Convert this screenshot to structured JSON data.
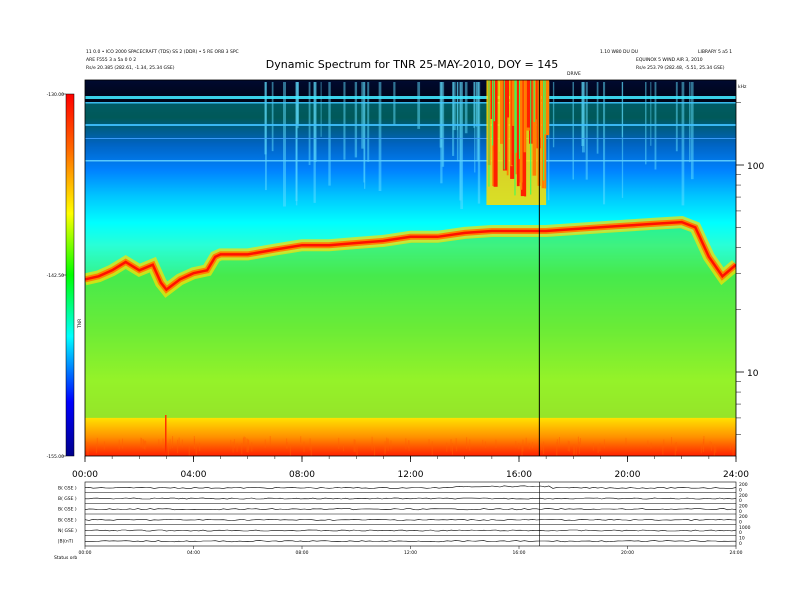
{
  "header": {
    "left_line1": "11 0.0 • ICO 2000 SPACECRAFT (TDS) SS 2 (DDR) • 5 RE ORB 3 SPC",
    "left_line2": "ARE F555 3 a 5a 0 0 2",
    "left_line3": "Rs/e 20.385 (282.61, -1.34, 25.34 GSE)",
    "right_line1": "1.10 W80 DU DU",
    "right_line1b": "LIBRARY 5 a5 1",
    "right_line2": "EQUINOX 5 WIND AIR 3, 2010",
    "right_line3": "Rs/e 253.79 (282.48, -5.51, 25.34 GSE)",
    "center_tag": "DRIVE"
  },
  "chart_data": {
    "type": "heatmap",
    "title": "Dynamic Spectrum for TNR 25-MAY-2010, DOY = 145",
    "x_ticks": [
      "00:00",
      "04:00",
      "08:00",
      "12:00",
      "16:00",
      "20:00",
      "24:00"
    ],
    "x_range_hours": [
      0,
      24
    ],
    "y_scale": "log",
    "y_unit": "kHz",
    "y_ticks": [
      10,
      100
    ],
    "colorbar": {
      "ticks": [
        "-130.00",
        "-142.50",
        "-155.00"
      ],
      "label": "TNR",
      "range": [
        -155,
        -130
      ]
    },
    "marker_line_hours": 16.75,
    "plasma_line_khz": [
      [
        0,
        28
      ],
      [
        0.5,
        29
      ],
      [
        1,
        31
      ],
      [
        1.5,
        34
      ],
      [
        2,
        31
      ],
      [
        2.5,
        33
      ],
      [
        2.8,
        27
      ],
      [
        3,
        25
      ],
      [
        3.5,
        28
      ],
      [
        4,
        30
      ],
      [
        4.5,
        31
      ],
      [
        4.8,
        36
      ],
      [
        5,
        37
      ],
      [
        6,
        37
      ],
      [
        7,
        39
      ],
      [
        7.5,
        40
      ],
      [
        8,
        41
      ],
      [
        9,
        41
      ],
      [
        10,
        42
      ],
      [
        11,
        43
      ],
      [
        12,
        45
      ],
      [
        13,
        45
      ],
      [
        14,
        47
      ],
      [
        15,
        48
      ],
      [
        16,
        48
      ],
      [
        17,
        48
      ],
      [
        18,
        49
      ],
      [
        19,
        50
      ],
      [
        20,
        51
      ],
      [
        21,
        52
      ],
      [
        22,
        53
      ],
      [
        22.5,
        50
      ],
      [
        23,
        36
      ],
      [
        23.5,
        29
      ],
      [
        24,
        33
      ]
    ]
  },
  "bottom_panels": {
    "labels": [
      "B( GSE )",
      "B( GSE )",
      "B( GSE )",
      "B( GSE )",
      "N( GSE )",
      "|B|(nT)"
    ],
    "right_ticks": [
      "200",
      "0",
      "200",
      "0",
      "200",
      "0",
      "200",
      "0",
      "1000",
      "0",
      "10",
      "0"
    ],
    "x_ticks": [
      "00:00",
      "04:00",
      "08:00",
      "12:00",
      "16:00",
      "20:00",
      "24:00"
    ],
    "footer_left": "Status   orb"
  },
  "colors": {
    "background": "#ffffff",
    "marker_line": "#000000"
  }
}
